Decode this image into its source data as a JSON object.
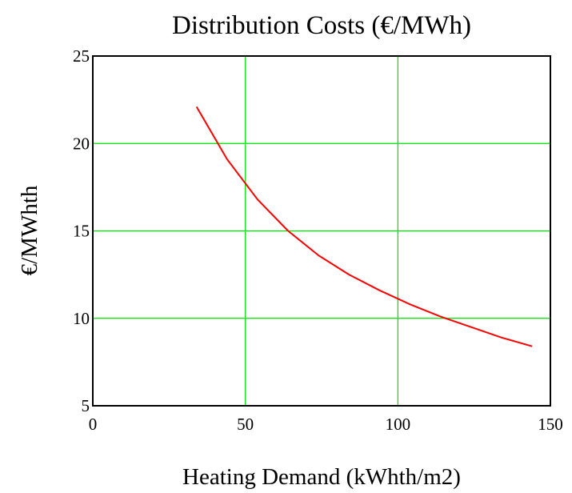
{
  "chart_data": {
    "type": "line",
    "title": "Distribution Costs (€/MWh)",
    "xlabel": "Heating Demand (kWhth/m2)",
    "ylabel": "€/MWhth",
    "xlim": [
      0,
      150
    ],
    "ylim": [
      5,
      25
    ],
    "xticks": [
      0,
      50,
      100,
      150
    ],
    "yticks": [
      5,
      10,
      15,
      20,
      25
    ],
    "grid": true,
    "grid_color": "#00e000",
    "series": [
      {
        "color": "#ff0000",
        "x": [
          34,
          44,
          54,
          64,
          74,
          84,
          94,
          104,
          114,
          124,
          134,
          144
        ],
        "y": [
          22.1,
          19.1,
          16.8,
          15.0,
          13.6,
          12.5,
          11.6,
          10.8,
          10.1,
          9.5,
          8.9,
          8.4
        ]
      }
    ]
  }
}
